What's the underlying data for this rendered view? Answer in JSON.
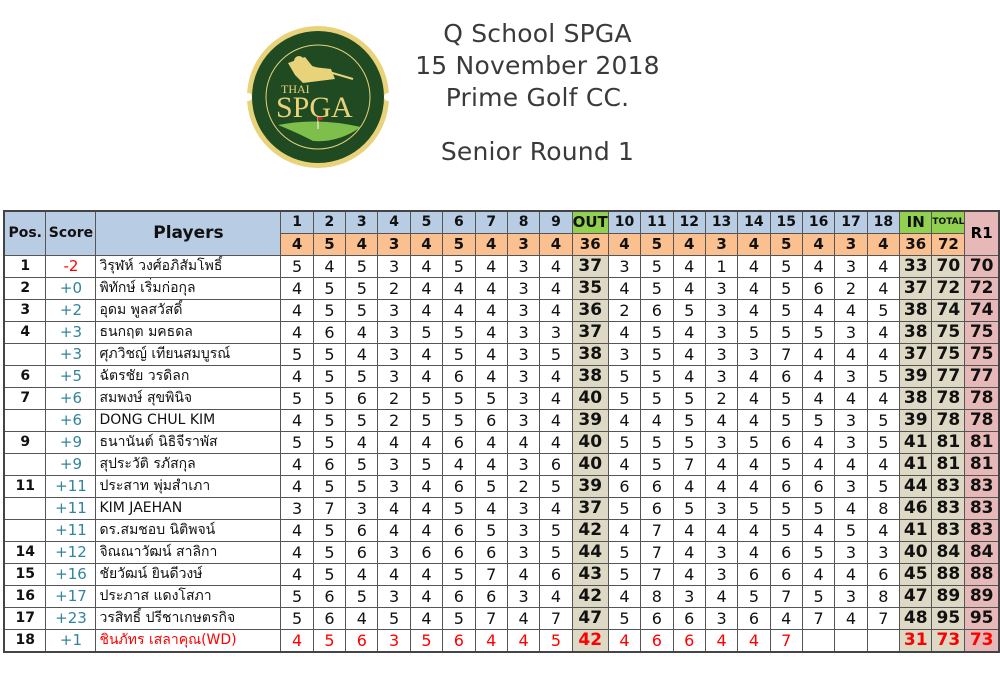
{
  "logo": {
    "top_arc_text": "สมาคมกีฬากอล์ฟอาชีพอาวุโสไทย",
    "small_text": "THAI",
    "main_text": "SPGA",
    "bottom_arc_text": "THAI SENIOR PROFESSIONAL GOLF ASSOCIATION",
    "colors": {
      "green": "#1f4a22",
      "gold": "#e8d27a",
      "light_green": "#7dbf4a",
      "flag": "#e02020"
    }
  },
  "title": {
    "line1": "Q School SPGA",
    "line2": "15  November 2018",
    "line3": "Prime Golf CC.",
    "round": "Senior Round 1"
  },
  "table": {
    "headers": {
      "pos": "Pos.",
      "score": "Score",
      "players": "Players",
      "holes": [
        "1",
        "2",
        "3",
        "4",
        "5",
        "6",
        "7",
        "8",
        "9",
        "OUT",
        "10",
        "11",
        "12",
        "13",
        "14",
        "15",
        "16",
        "17",
        "18",
        "IN",
        "TOTAL"
      ],
      "r1": "R1"
    },
    "par": [
      "4",
      "5",
      "4",
      "3",
      "4",
      "5",
      "4",
      "3",
      "4",
      "36",
      "4",
      "5",
      "4",
      "3",
      "4",
      "5",
      "4",
      "3",
      "4",
      "36",
      "72"
    ],
    "colors": {
      "header_blue": "#b8cce4",
      "par_orange": "#fac090",
      "sum_green": "#92d050",
      "total_tan": "#ddd9c4",
      "r1_pink": "#e6b8b7",
      "score_teal": "#31849b",
      "red": "#ff0000"
    },
    "rows": [
      {
        "pos": "1",
        "score": "-2",
        "name": "วิรุฬห์ วงศ์อภิสัมโพธิ์",
        "front": [
          "5",
          "4",
          "5",
          "3",
          "4",
          "5",
          "4",
          "3",
          "4"
        ],
        "out": "37",
        "back": [
          "3",
          "5",
          "4",
          "1",
          "4",
          "5",
          "4",
          "3",
          "4"
        ],
        "in": "33",
        "total": "70",
        "r1": "70"
      },
      {
        "pos": "2",
        "score": "+0",
        "name": "พิทักษ์ เริ่มก่อกุล",
        "front": [
          "4",
          "5",
          "5",
          "2",
          "4",
          "4",
          "4",
          "3",
          "4"
        ],
        "out": "35",
        "back": [
          "4",
          "5",
          "4",
          "3",
          "4",
          "5",
          "6",
          "2",
          "4"
        ],
        "in": "37",
        "total": "72",
        "r1": "72"
      },
      {
        "pos": "3",
        "score": "+2",
        "name": "อุดม พูลสวัสดิ์",
        "front": [
          "4",
          "5",
          "5",
          "3",
          "4",
          "4",
          "4",
          "3",
          "4"
        ],
        "out": "36",
        "back": [
          "2",
          "6",
          "5",
          "3",
          "4",
          "5",
          "4",
          "4",
          "5"
        ],
        "in": "38",
        "total": "74",
        "r1": "74"
      },
      {
        "pos": "4",
        "score": "+3",
        "name": "ธนกฤต มคธดล",
        "front": [
          "4",
          "6",
          "4",
          "3",
          "5",
          "5",
          "4",
          "3",
          "3"
        ],
        "out": "37",
        "back": [
          "4",
          "5",
          "4",
          "3",
          "5",
          "5",
          "5",
          "3",
          "4"
        ],
        "in": "38",
        "total": "75",
        "r1": "75"
      },
      {
        "pos": "",
        "score": "+3",
        "name": "ศุภวิชญ์ เทียนสมบูรณ์",
        "front": [
          "5",
          "5",
          "4",
          "3",
          "4",
          "5",
          "4",
          "3",
          "5"
        ],
        "out": "38",
        "back": [
          "3",
          "5",
          "4",
          "3",
          "3",
          "7",
          "4",
          "4",
          "4"
        ],
        "in": "37",
        "total": "75",
        "r1": "75"
      },
      {
        "pos": "6",
        "score": "+5",
        "name": "ฉัตรชัย วรดิลก",
        "front": [
          "4",
          "5",
          "5",
          "3",
          "4",
          "6",
          "4",
          "3",
          "4"
        ],
        "out": "38",
        "back": [
          "5",
          "5",
          "4",
          "3",
          "4",
          "6",
          "4",
          "3",
          "5"
        ],
        "in": "39",
        "total": "77",
        "r1": "77"
      },
      {
        "pos": "7",
        "score": "+6",
        "name": "สมพงษ์ สุขพินิจ",
        "front": [
          "5",
          "5",
          "6",
          "2",
          "5",
          "5",
          "5",
          "3",
          "4"
        ],
        "out": "40",
        "back": [
          "5",
          "5",
          "5",
          "2",
          "4",
          "5",
          "4",
          "4",
          "4"
        ],
        "in": "38",
        "total": "78",
        "r1": "78"
      },
      {
        "pos": "",
        "score": "+6",
        "name": "DONG CHUL KIM",
        "front": [
          "4",
          "5",
          "5",
          "2",
          "5",
          "5",
          "6",
          "3",
          "4"
        ],
        "out": "39",
        "back": [
          "4",
          "4",
          "5",
          "4",
          "4",
          "5",
          "5",
          "3",
          "5"
        ],
        "in": "39",
        "total": "78",
        "r1": "78"
      },
      {
        "pos": "9",
        "score": "+9",
        "name": "ธนานันต์ นิธิจีราพัส",
        "front": [
          "5",
          "5",
          "4",
          "4",
          "4",
          "6",
          "4",
          "4",
          "4"
        ],
        "out": "40",
        "back": [
          "5",
          "5",
          "5",
          "3",
          "5",
          "6",
          "4",
          "3",
          "5"
        ],
        "in": "41",
        "total": "81",
        "r1": "81"
      },
      {
        "pos": "",
        "score": "+9",
        "name": "สุประวัติ รภัสกุล",
        "front": [
          "4",
          "6",
          "5",
          "3",
          "5",
          "4",
          "4",
          "3",
          "6"
        ],
        "out": "40",
        "back": [
          "4",
          "5",
          "7",
          "4",
          "4",
          "5",
          "4",
          "4",
          "4"
        ],
        "in": "41",
        "total": "81",
        "r1": "81"
      },
      {
        "pos": "11",
        "score": "+11",
        "name": "ประสาท พุ่มสำเภา",
        "front": [
          "4",
          "5",
          "5",
          "3",
          "4",
          "6",
          "5",
          "2",
          "5"
        ],
        "out": "39",
        "back": [
          "6",
          "6",
          "4",
          "4",
          "4",
          "6",
          "6",
          "3",
          "5"
        ],
        "in": "44",
        "total": "83",
        "r1": "83"
      },
      {
        "pos": "",
        "score": "+11",
        "name": "KIM JAEHAN",
        "front": [
          "3",
          "7",
          "3",
          "4",
          "4",
          "5",
          "4",
          "3",
          "4"
        ],
        "out": "37",
        "back": [
          "5",
          "6",
          "5",
          "3",
          "5",
          "5",
          "5",
          "4",
          "8"
        ],
        "in": "46",
        "total": "83",
        "r1": "83"
      },
      {
        "pos": "",
        "score": "+11",
        "name": "ดร.สมชอบ นิติพจน์",
        "front": [
          "4",
          "5",
          "6",
          "4",
          "4",
          "6",
          "5",
          "3",
          "5"
        ],
        "out": "42",
        "back": [
          "4",
          "7",
          "4",
          "4",
          "4",
          "5",
          "4",
          "5",
          "4"
        ],
        "in": "41",
        "total": "83",
        "r1": "83"
      },
      {
        "pos": "14",
        "score": "+12",
        "name": "จิณณาวัฒน์ สาลิกา",
        "front": [
          "4",
          "5",
          "6",
          "3",
          "6",
          "6",
          "6",
          "3",
          "5"
        ],
        "out": "44",
        "back": [
          "5",
          "7",
          "4",
          "3",
          "4",
          "6",
          "5",
          "3",
          "3"
        ],
        "in": "40",
        "total": "84",
        "r1": "84"
      },
      {
        "pos": "15",
        "score": "+16",
        "name": "ชัยวัฒน์ ยินดีวงษ์",
        "front": [
          "4",
          "5",
          "4",
          "4",
          "4",
          "5",
          "7",
          "4",
          "6"
        ],
        "out": "43",
        "back": [
          "5",
          "7",
          "4",
          "3",
          "6",
          "6",
          "4",
          "4",
          "6"
        ],
        "in": "45",
        "total": "88",
        "r1": "88"
      },
      {
        "pos": "16",
        "score": "+17",
        "name": "ประภาส แดงโสภา",
        "front": [
          "5",
          "6",
          "5",
          "3",
          "4",
          "6",
          "6",
          "3",
          "4"
        ],
        "out": "42",
        "back": [
          "4",
          "8",
          "3",
          "4",
          "5",
          "7",
          "5",
          "3",
          "8"
        ],
        "in": "47",
        "total": "89",
        "r1": "89"
      },
      {
        "pos": "17",
        "score": "+23",
        "name": "วรสิทธิ์ ปรีชาเกษตรกิจ",
        "front": [
          "5",
          "6",
          "4",
          "5",
          "4",
          "5",
          "7",
          "4",
          "7"
        ],
        "out": "47",
        "back": [
          "5",
          "6",
          "6",
          "3",
          "6",
          "4",
          "7",
          "4",
          "7"
        ],
        "in": "48",
        "total": "95",
        "r1": "95"
      },
      {
        "pos": "18",
        "score": "+1",
        "name": "ชินภัทร เสลาคุณ(WD)",
        "withdrawn": true,
        "front": [
          "4",
          "5",
          "6",
          "3",
          "5",
          "6",
          "4",
          "4",
          "5"
        ],
        "out": "42",
        "back": [
          "4",
          "6",
          "6",
          "4",
          "4",
          "7",
          "",
          "",
          ""
        ],
        "in": "31",
        "total": "73",
        "r1": "73"
      }
    ]
  }
}
